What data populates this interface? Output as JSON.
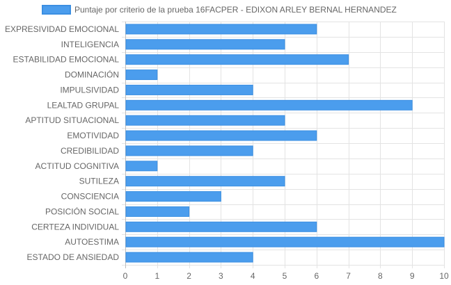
{
  "chart_data": {
    "type": "bar",
    "orientation": "horizontal",
    "categories": [
      "EXPRESIVIDAD EMOCIONAL",
      "INTELIGENCIA",
      "ESTABILIDAD EMOCIONAL",
      "DOMINACIÓN",
      "IMPULSIVIDAD",
      "LEALTAD GRUPAL",
      "APTITUD SITUACIONAL",
      "EMOTIVIDAD",
      "CREDIBILIDAD",
      "ACTITUD COGNITIVA",
      "SUTILEZA",
      "CONSCIENCIA",
      "POSICIÓN SOCIAL",
      "CERTEZA INDIVIDUAL",
      "AUTOESTIMA",
      "ESTADO DE ANSIEDAD"
    ],
    "series": [
      {
        "name": "Puntaje por criterio de la prueba 16FACPER - EDIXON ARLEY  BERNAL HERNANDEZ",
        "values": [
          6,
          5,
          7,
          1,
          4,
          9,
          5,
          6,
          4,
          1,
          5,
          3,
          2,
          6,
          10,
          4
        ]
      }
    ],
    "xlim": [
      0,
      10
    ],
    "xticks": [
      "0",
      "1",
      "2",
      "3",
      "4",
      "5",
      "6",
      "7",
      "8",
      "9",
      "10"
    ],
    "grid": true,
    "legend": "top-center",
    "colors": {
      "bar_fill": "#4b9ded",
      "bar_stroke": "#3b8fe2",
      "grid": "#e3e3e3",
      "axis": "#bdbdbd",
      "text": "#666666"
    }
  }
}
